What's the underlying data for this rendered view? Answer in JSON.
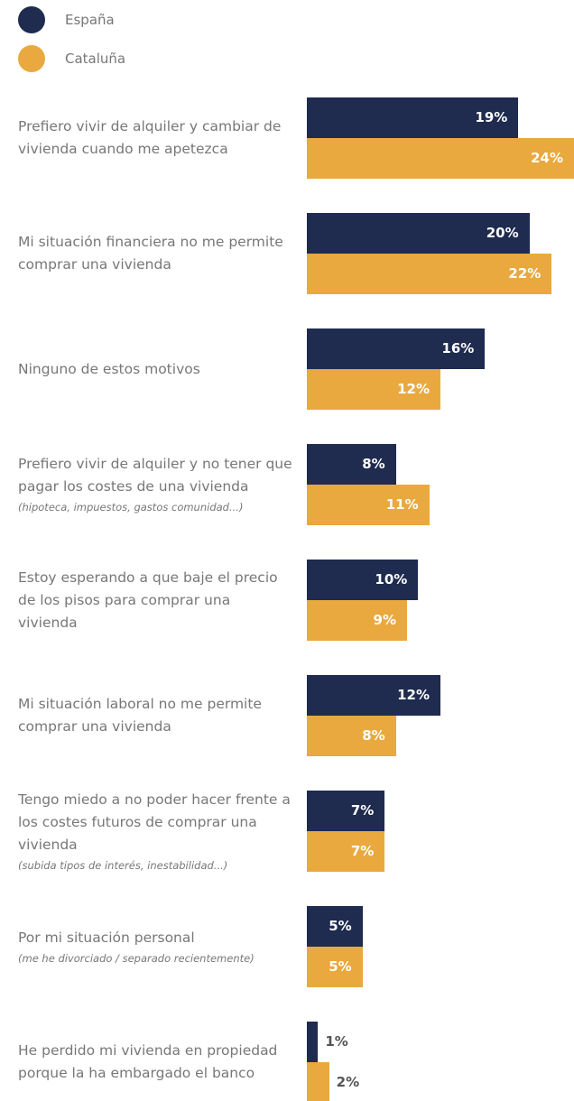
{
  "chart_data": {
    "type": "bar",
    "orientation": "horizontal",
    "categories": [
      "Prefiero vivir de alquiler y cambiar de vivienda cuando me apetezca",
      "Mi situación financiera no me permite comprar una vivienda",
      "Ninguno de estos motivos",
      "Prefiero vivir de alquiler y no tener que pagar los costes de una vivienda",
      "Estoy esperando a que baje el precio de los pisos para comprar una vivienda",
      "Mi situación laboral no me permite comprar una vivienda",
      "Tengo miedo a no poder hacer frente a los costes futuros de comprar una vivienda",
      "Por mi situación personal",
      "He perdido mi vivienda en propiedad porque la ha embargado el banco"
    ],
    "notes": [
      null,
      null,
      null,
      "(hipoteca, impuestos, gastos comunidad...)",
      null,
      null,
      "(subida tipos de interés, inestabilidad...)",
      "(me he divorciado / separado recientemente)",
      null
    ],
    "series": [
      {
        "name": "España",
        "color": "#1f2b4f",
        "values": [
          19,
          20,
          16,
          8,
          10,
          12,
          7,
          5,
          1
        ],
        "value_labels": [
          "19%",
          "20%",
          "16%",
          "8%",
          "10%",
          "12%",
          "7%",
          "5%",
          "1%"
        ]
      },
      {
        "name": "Cataluña",
        "color": "#e9a93f",
        "values": [
          24,
          22,
          12,
          11,
          9,
          8,
          7,
          5,
          2
        ],
        "value_labels": [
          "24%",
          "22%",
          "12%",
          "11%",
          "9%",
          "8%",
          "7%",
          "5%",
          "2%"
        ]
      }
    ],
    "xlim": [
      0,
      24
    ]
  }
}
